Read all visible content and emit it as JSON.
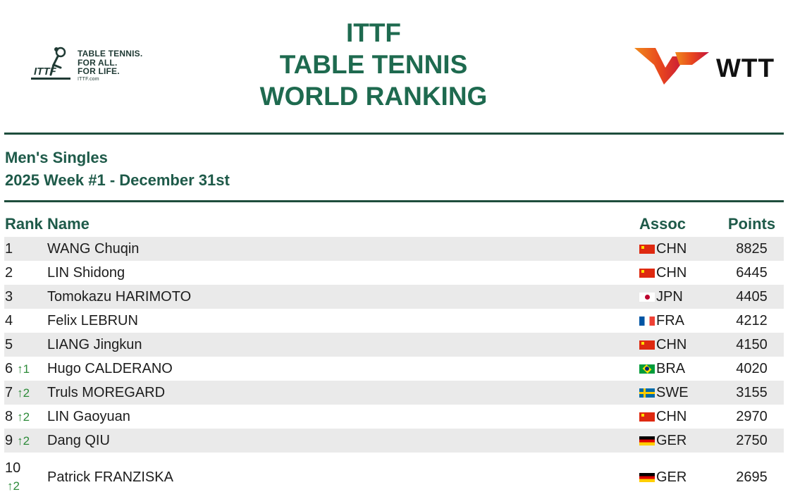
{
  "header": {
    "logo_lines": [
      "TABLE TENNIS.",
      "FOR ALL.",
      "FOR LIFE."
    ],
    "logo_url": "ITTF.com",
    "logo_mark": "ITTF",
    "title_lines": [
      "ITTF",
      "TABLE TENNIS",
      "WORLD RANKING"
    ],
    "wtt_text": "WTT"
  },
  "subtitle": {
    "category": "Men's Singles",
    "week": "2025 Week #1 - December 31st"
  },
  "table": {
    "headers": {
      "rank": "Rank",
      "name": "Name",
      "assoc": "Assoc",
      "points": "Points"
    },
    "rows": [
      {
        "rank": "1",
        "change": "",
        "name": "WANG Chuqin",
        "flag": "chn",
        "assoc": "CHN",
        "points": "8825"
      },
      {
        "rank": "2",
        "change": "",
        "name": "LIN Shidong",
        "flag": "chn",
        "assoc": "CHN",
        "points": "6445"
      },
      {
        "rank": "3",
        "change": "",
        "name": "Tomokazu HARIMOTO",
        "flag": "jpn",
        "assoc": "JPN",
        "points": "4405"
      },
      {
        "rank": "4",
        "change": "",
        "name": "Felix LEBRUN",
        "flag": "fra",
        "assoc": "FRA",
        "points": "4212"
      },
      {
        "rank": "5",
        "change": "",
        "name": "LIANG Jingkun",
        "flag": "chn",
        "assoc": "CHN",
        "points": "4150"
      },
      {
        "rank": "6",
        "change": "↑1",
        "name": "Hugo CALDERANO",
        "flag": "bra",
        "assoc": "BRA",
        "points": "4020"
      },
      {
        "rank": "7",
        "change": "↑2",
        "name": "Truls MOREGARD",
        "flag": "swe",
        "assoc": "SWE",
        "points": "3155"
      },
      {
        "rank": "8",
        "change": "↑2",
        "name": "LIN Gaoyuan",
        "flag": "chn",
        "assoc": "CHN",
        "points": "2970"
      },
      {
        "rank": "9",
        "change": "↑2",
        "name": "Dang QIU",
        "flag": "ger",
        "assoc": "GER",
        "points": "2750"
      },
      {
        "rank": "10",
        "change": "↑2",
        "name": "Patrick FRANZISKA",
        "flag": "ger",
        "assoc": "GER",
        "points": "2695"
      }
    ]
  },
  "colors": {
    "title_green": "#1e6a4f",
    "rule": "#1e4d3c",
    "row_alt": "#eaeaea",
    "up_arrow": "#2e8b3a"
  }
}
